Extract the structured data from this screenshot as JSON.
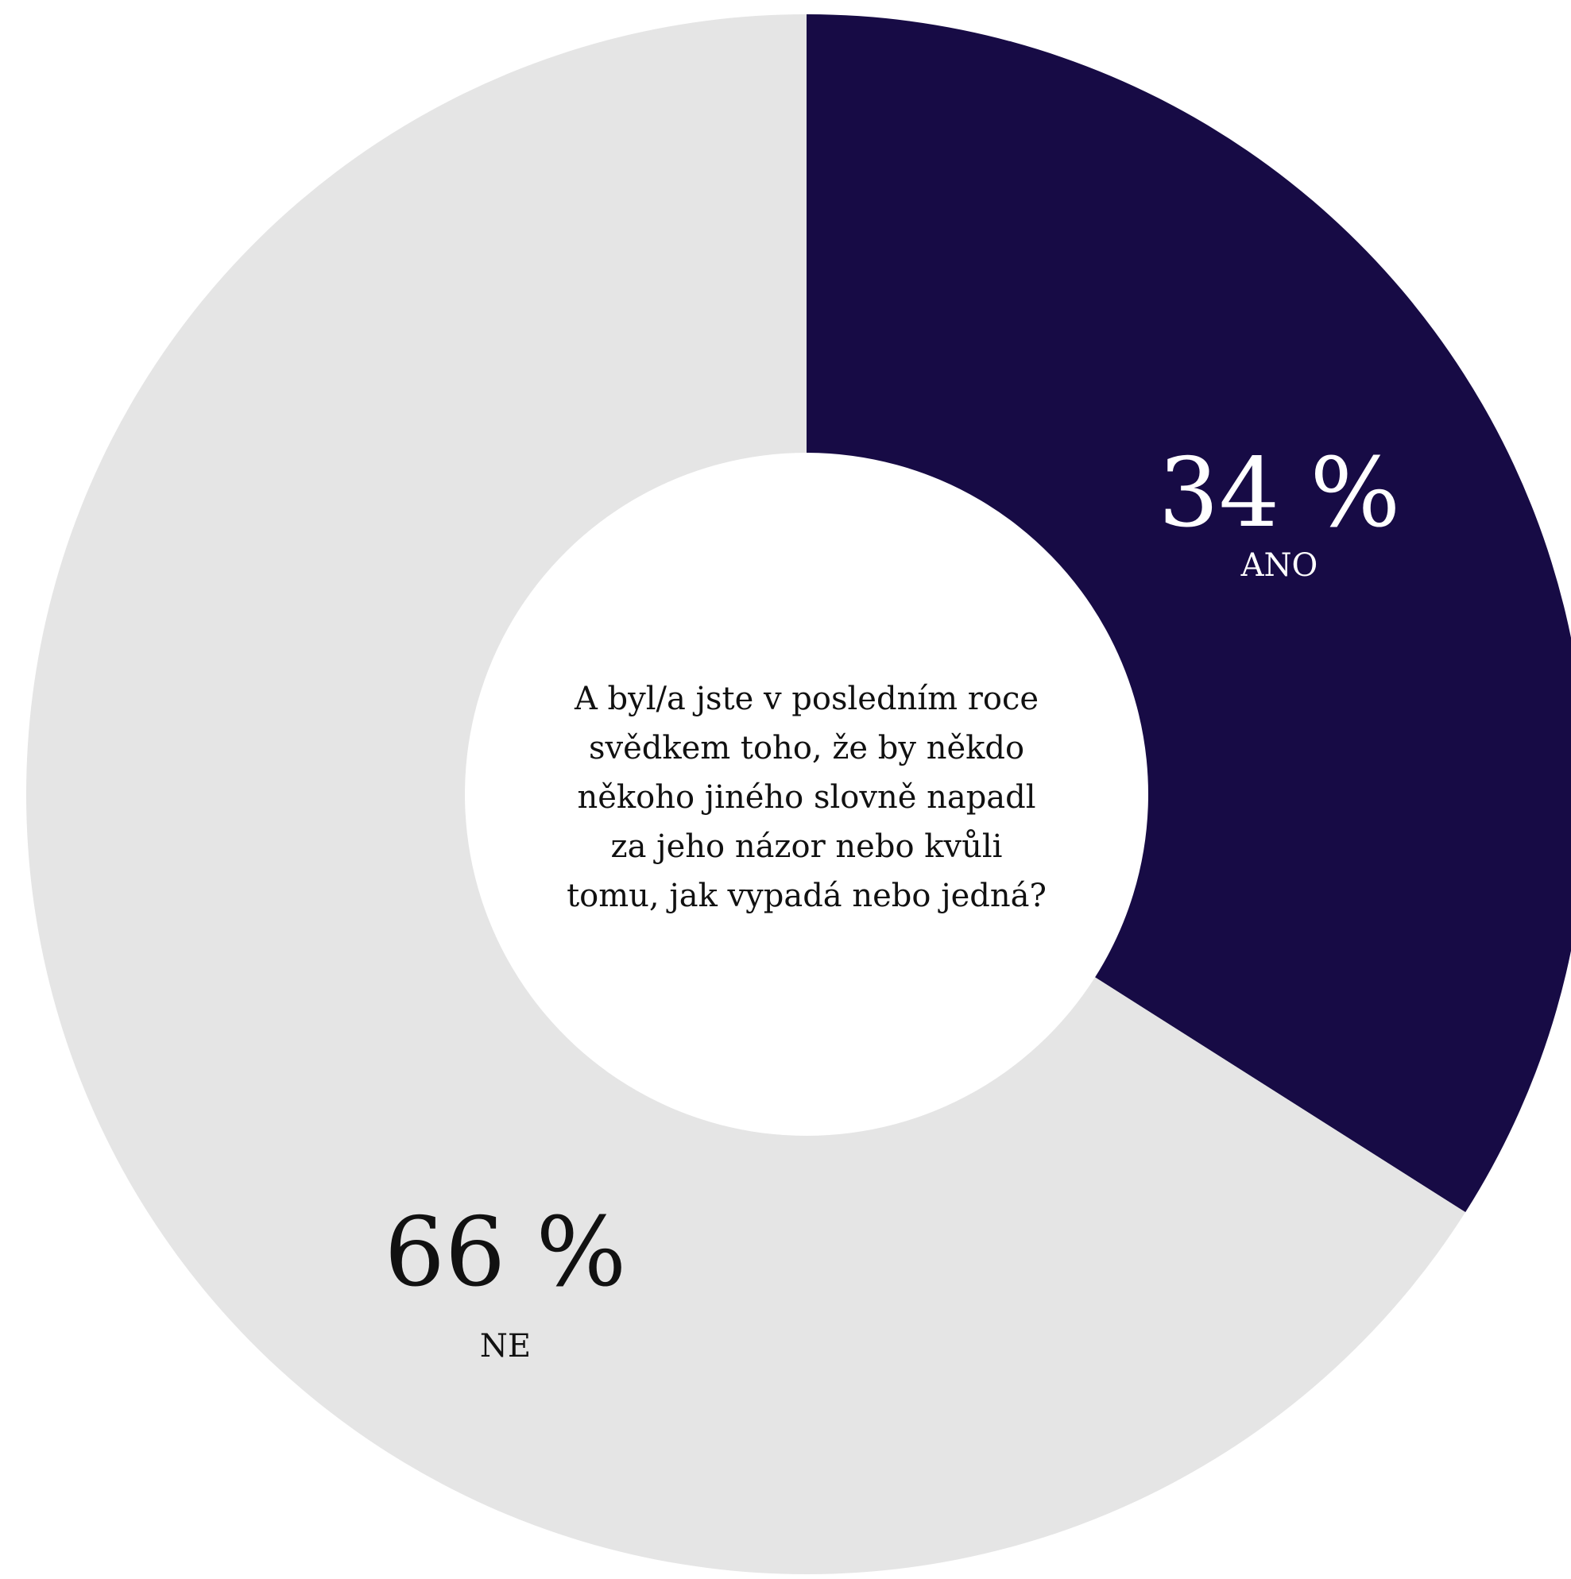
{
  "chart_data": {
    "type": "pie",
    "subtype": "donut",
    "title": "A byl/a jste v posledním roce svědkem toho, že by někdo někoho jiného slovně napadl za jeho názor nebo kvůli tomu, jak vypadá nebo jedná?",
    "title_lines": [
      "A byl/a jste v posledním roce",
      "svědkem toho, že by někdo",
      "někoho jiného slovně napadl",
      "za jeho názor nebo kvůli",
      "tomu, jak vypadá nebo jedná?"
    ],
    "slices": [
      {
        "name": "ANO",
        "value": 34,
        "value_label": "34 %",
        "color": "#170b45",
        "text_color": "#ffffff"
      },
      {
        "name": "NE",
        "value": 66,
        "value_label": "66 %",
        "color": "#e5e5e5",
        "text_color": "#111111"
      }
    ],
    "legend": "none"
  }
}
